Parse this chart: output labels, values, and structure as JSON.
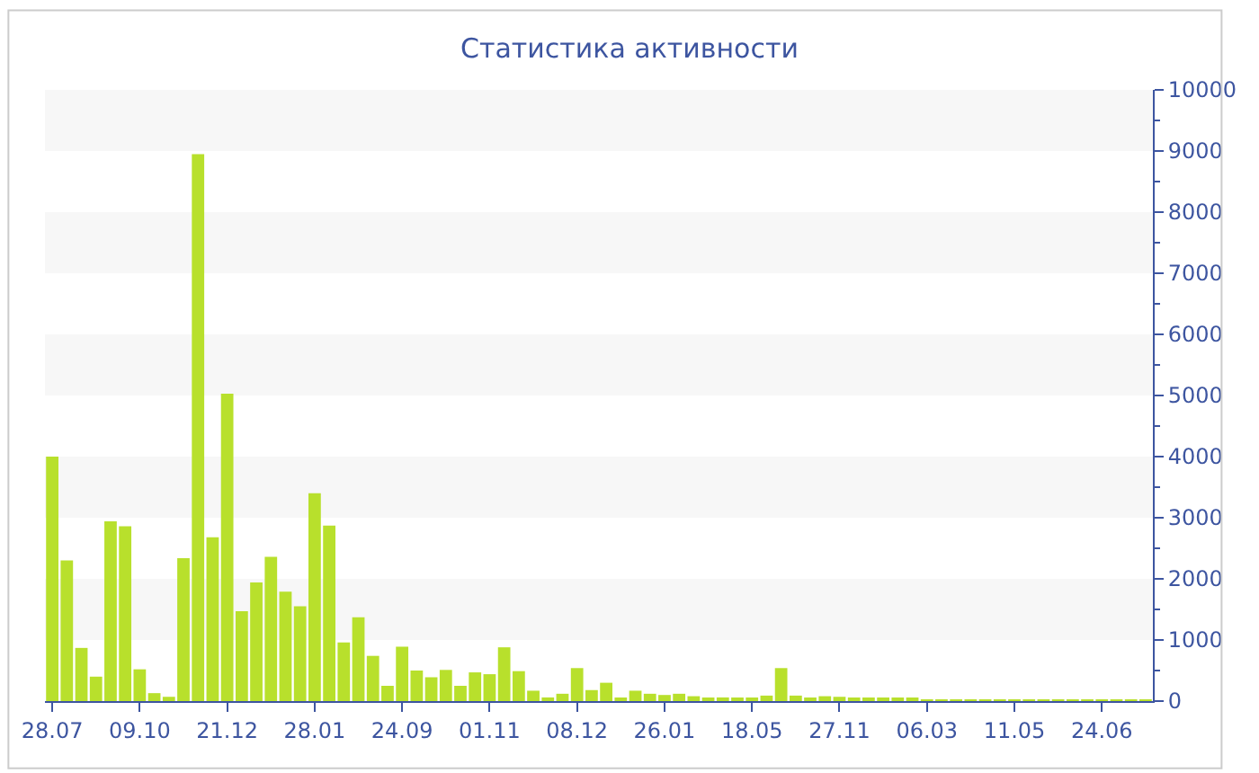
{
  "chart_data": {
    "type": "bar",
    "title": "Статистика активности",
    "categories": [
      "28.07",
      null,
      null,
      null,
      null,
      null,
      "09.10",
      null,
      null,
      null,
      null,
      null,
      "21.12",
      null,
      null,
      null,
      null,
      null,
      "28.01",
      null,
      null,
      null,
      null,
      null,
      "24.09",
      null,
      null,
      null,
      null,
      null,
      "01.11",
      null,
      null,
      null,
      null,
      null,
      "08.12",
      null,
      null,
      null,
      null,
      null,
      "26.01",
      null,
      null,
      null,
      null,
      null,
      "18.05",
      null,
      null,
      null,
      null,
      null,
      "27.11",
      null,
      null,
      null,
      null,
      null,
      "06.03",
      null,
      null,
      null,
      null,
      null,
      "11.05",
      null,
      null,
      null,
      null,
      null,
      "24.06",
      null,
      null,
      null
    ],
    "series": [
      {
        "color": "#b8e02c",
        "values": [
          4000,
          2300,
          870,
          400,
          2940,
          2860,
          520,
          130,
          70,
          2340,
          8950,
          2680,
          5030,
          1470,
          1940,
          2360,
          1790,
          1550,
          3400,
          2870,
          960,
          1370,
          740,
          250,
          890,
          500,
          390,
          510,
          250,
          470,
          440,
          880,
          490,
          170,
          60,
          120,
          540,
          180,
          300,
          40,
          170,
          120,
          100,
          120,
          80,
          30,
          60,
          40,
          40,
          90,
          540,
          90,
          40,
          80,
          70,
          50,
          30,
          30,
          30,
          30,
          20,
          20,
          20,
          20,
          20,
          20,
          20,
          20,
          20,
          20,
          20,
          20,
          20,
          20,
          20,
          20
        ]
      }
    ],
    "ylim": [
      0,
      10000
    ],
    "yticks": [
      0,
      1000,
      2000,
      3000,
      4000,
      5000,
      6000,
      7000,
      8000,
      9000,
      10000
    ],
    "bands": [
      {
        "axis": "y",
        "from": 1000,
        "to": 2000,
        "color": "#f7f7f7"
      },
      {
        "axis": "y",
        "from": 3000,
        "to": 4000,
        "color": "#f7f7f7"
      },
      {
        "axis": "y",
        "from": 5000,
        "to": 6000,
        "color": "#f7f7f7"
      },
      {
        "axis": "y",
        "from": 7000,
        "to": 8000,
        "color": "#f7f7f7"
      },
      {
        "axis": "y",
        "from": 9000,
        "to": 10000,
        "color": "#f7f7f7"
      }
    ]
  }
}
